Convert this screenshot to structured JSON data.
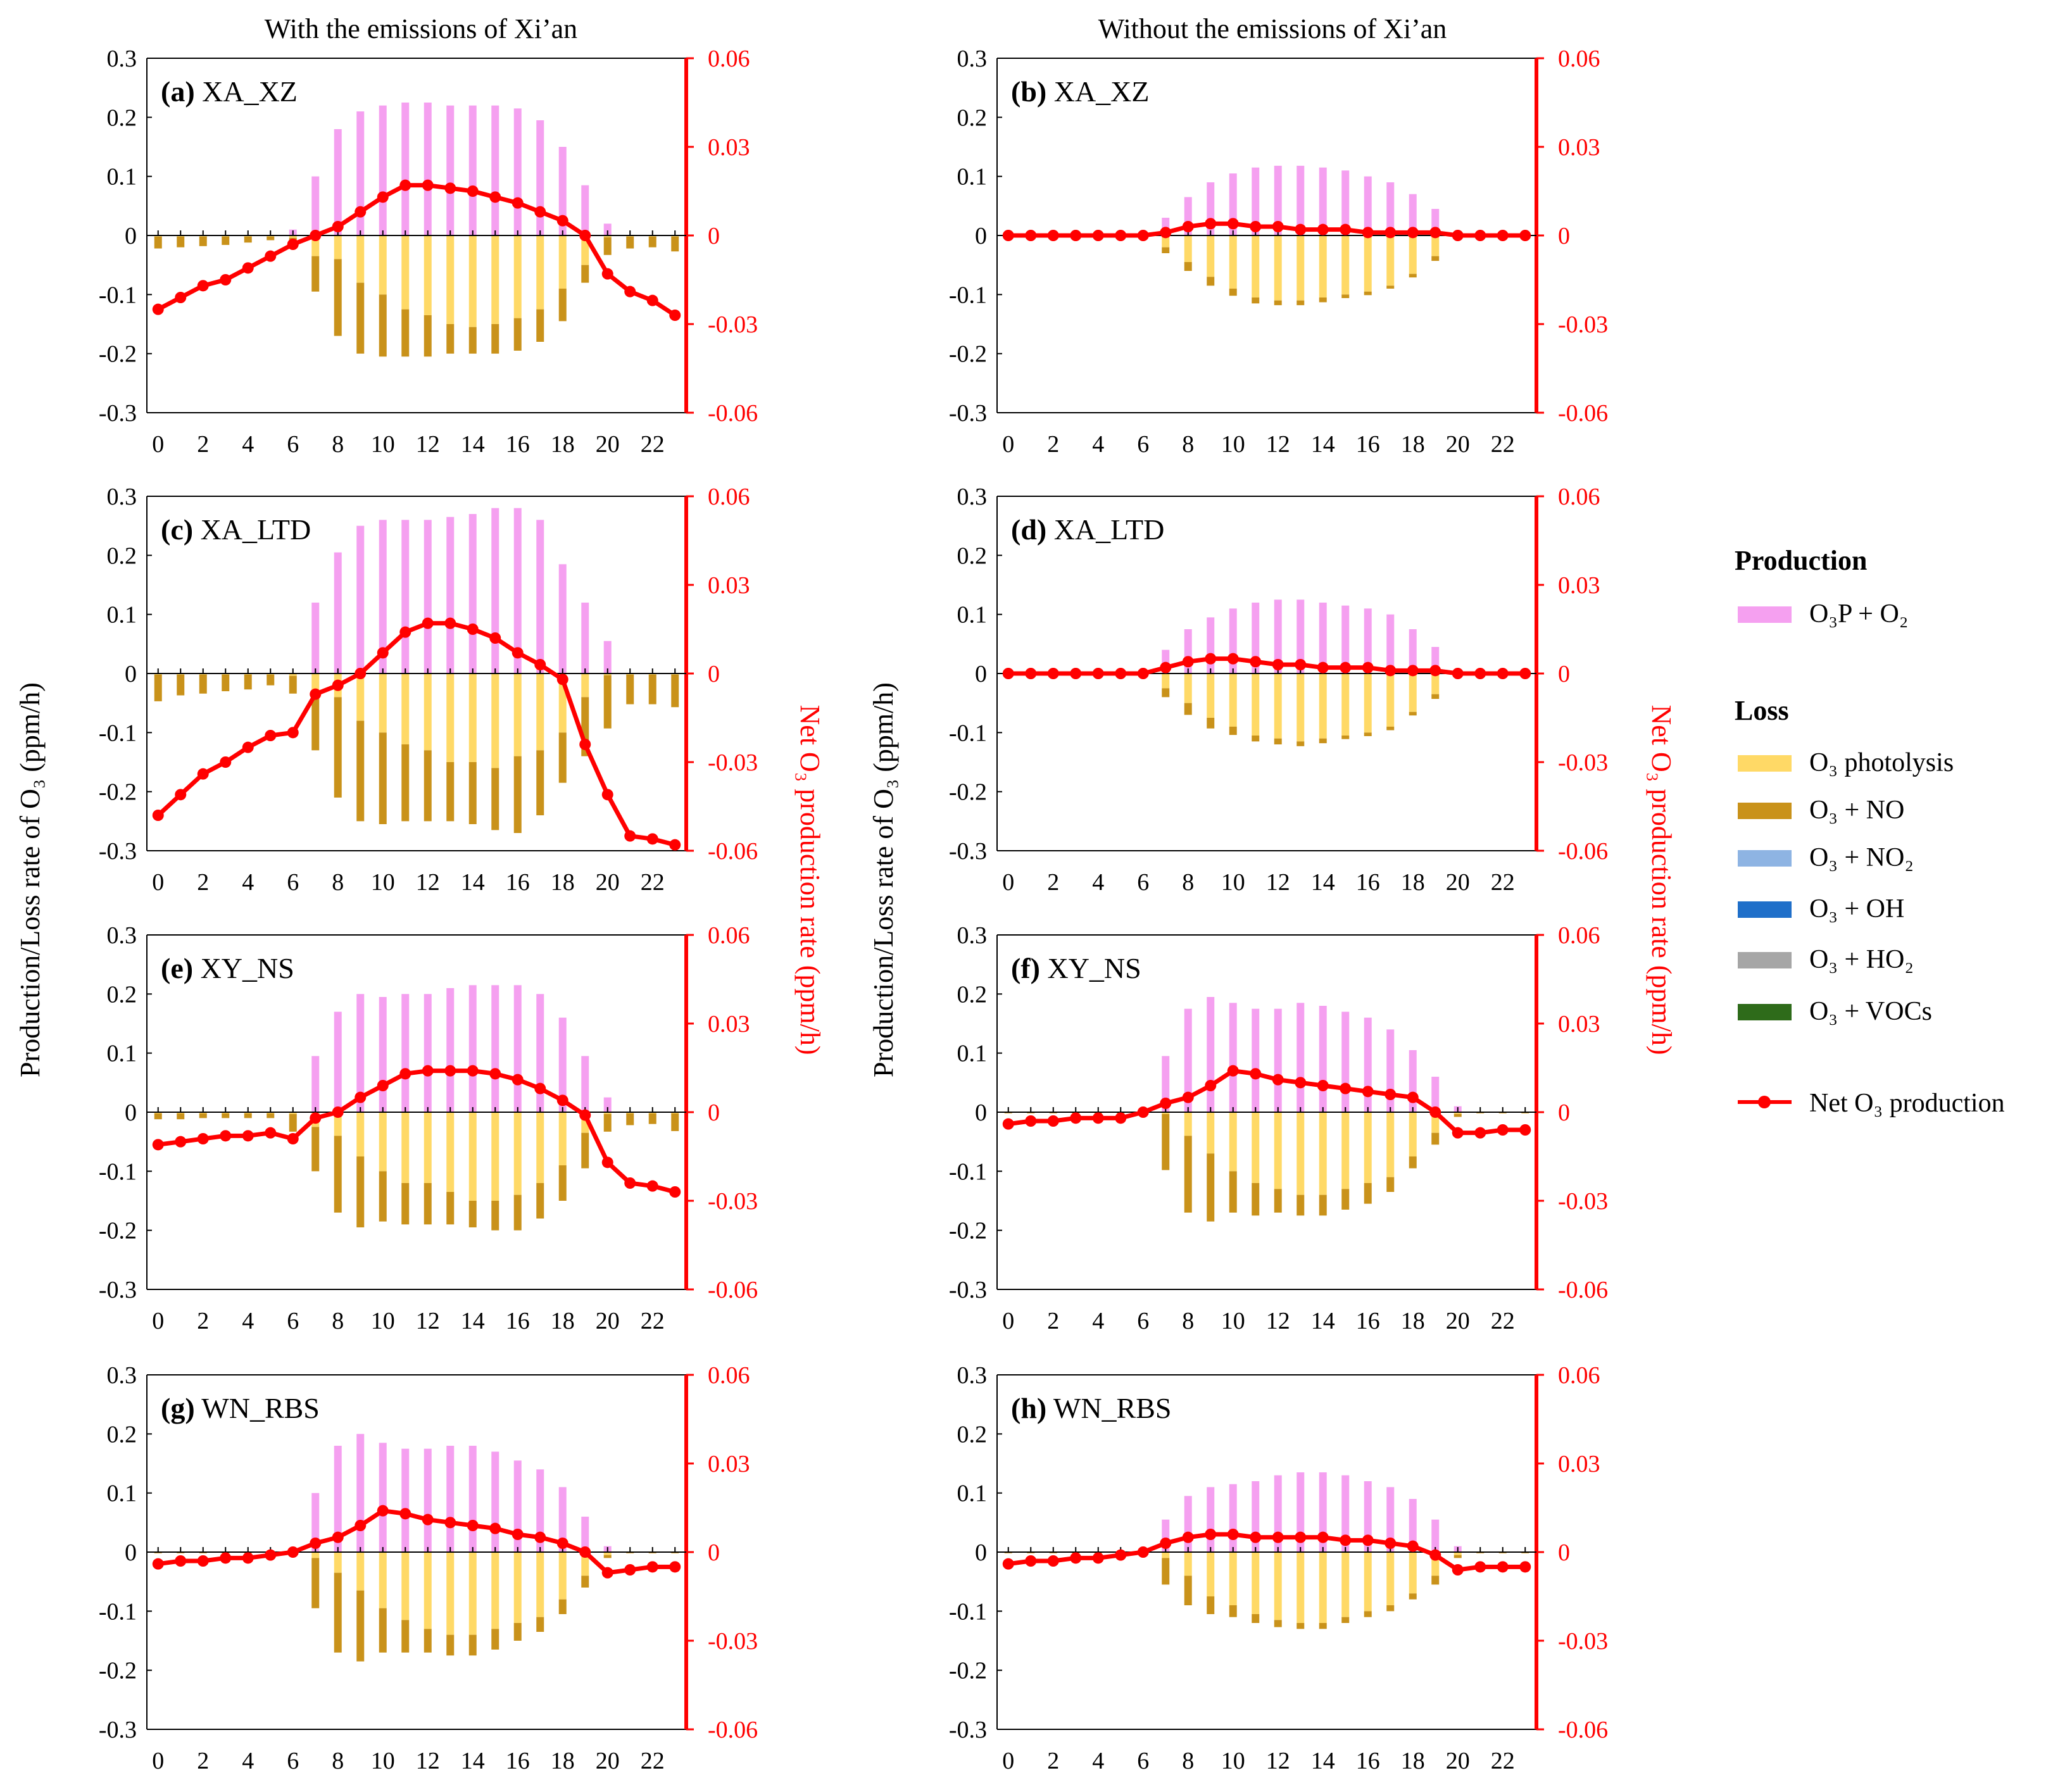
{
  "column_titles": [
    "With the emissions of Xi’an",
    "Without the emissions of Xi’an"
  ],
  "y_axis_title_left": "Production/Loss rate of O₃ (ppm/h)",
  "y_axis_title_right": "Net O₃ production rate (ppm/h)",
  "colors": {
    "o3p_o2": "#f5a0f0",
    "o3_photolysis": "#ffd966",
    "o3_no": "#c9921a",
    "o3_no2": "#8eb4e3",
    "o3_oh": "#1f6fc9",
    "o3_ho2": "#a6a6a6",
    "o3_vocs": "#2e6b1a",
    "net": "#ff0000",
    "axis": "#000000"
  },
  "legend": {
    "production_heading": "Production",
    "loss_heading": "Loss",
    "items": {
      "o3p_o2": "O₃P + O₂",
      "o3_photolysis": "O₃ photolysis",
      "o3_no": "O₃ + NO",
      "o3_no2": "O₃ + NO₂",
      "o3_oh": "O₃ + OH",
      "o3_ho2": "O₃ + HO₂",
      "o3_vocs": "O₃ + VOCs",
      "net": "Net O₃ production"
    }
  },
  "chart_data": [
    {
      "type": "bar",
      "label": "(a)",
      "site": "XA_XZ",
      "x": [
        0,
        1,
        2,
        3,
        4,
        5,
        6,
        7,
        8,
        9,
        10,
        11,
        12,
        13,
        14,
        15,
        16,
        17,
        18,
        19,
        20,
        21,
        22,
        23
      ],
      "x_ticks": [
        0,
        2,
        4,
        6,
        8,
        10,
        12,
        14,
        16,
        18,
        20,
        22
      ],
      "ylim": [
        -0.3,
        0.3
      ],
      "y_ticks": [
        -0.3,
        -0.2,
        -0.1,
        0,
        0.1,
        0.2,
        0.3
      ],
      "y2lim": [
        -0.06,
        0.06
      ],
      "y2_ticks": [
        -0.06,
        -0.03,
        0,
        0.03,
        0.06
      ],
      "production": [
        0,
        0,
        0,
        0,
        0,
        0,
        0.01,
        0.1,
        0.18,
        0.21,
        0.22,
        0.225,
        0.225,
        0.22,
        0.22,
        0.22,
        0.215,
        0.195,
        0.15,
        0.085,
        0.02,
        0,
        0,
        0
      ],
      "photolysis": [
        0.002,
        0.002,
        0.002,
        0.002,
        0.002,
        0.002,
        0.004,
        0.035,
        0.04,
        0.08,
        0.1,
        0.125,
        0.135,
        0.15,
        0.155,
        0.15,
        0.14,
        0.125,
        0.09,
        0.05,
        0.003,
        0.002,
        0.002,
        0.002
      ],
      "no_loss": [
        0.02,
        0.018,
        0.016,
        0.014,
        0.01,
        0.006,
        0.008,
        0.06,
        0.13,
        0.12,
        0.105,
        0.08,
        0.07,
        0.05,
        0.045,
        0.05,
        0.055,
        0.055,
        0.055,
        0.03,
        0.03,
        0.02,
        0.018,
        0.025
      ],
      "net": [
        -0.025,
        -0.021,
        -0.017,
        -0.015,
        -0.011,
        -0.007,
        -0.003,
        0.0,
        0.003,
        0.008,
        0.013,
        0.017,
        0.017,
        0.016,
        0.015,
        0.013,
        0.011,
        0.008,
        0.005,
        0.0,
        -0.013,
        -0.019,
        -0.022,
        -0.027
      ]
    },
    {
      "type": "bar",
      "label": "(b)",
      "site": "XA_XZ",
      "x": [
        0,
        1,
        2,
        3,
        4,
        5,
        6,
        7,
        8,
        9,
        10,
        11,
        12,
        13,
        14,
        15,
        16,
        17,
        18,
        19,
        20,
        21,
        22,
        23
      ],
      "x_ticks": [
        0,
        2,
        4,
        6,
        8,
        10,
        12,
        14,
        16,
        18,
        20,
        22
      ],
      "ylim": [
        -0.3,
        0.3
      ],
      "y_ticks": [
        -0.3,
        -0.2,
        -0.1,
        0,
        0.1,
        0.2,
        0.3
      ],
      "y2lim": [
        -0.06,
        0.06
      ],
      "y2_ticks": [
        -0.06,
        -0.03,
        0,
        0.03,
        0.06
      ],
      "production": [
        0,
        0,
        0,
        0,
        0,
        0,
        0,
        0.03,
        0.065,
        0.09,
        0.105,
        0.115,
        0.118,
        0.118,
        0.115,
        0.11,
        0.1,
        0.09,
        0.07,
        0.045,
        0,
        0,
        0,
        0
      ],
      "photolysis": [
        0,
        0,
        0,
        0,
        0,
        0,
        0,
        0.02,
        0.045,
        0.07,
        0.09,
        0.105,
        0.11,
        0.11,
        0.105,
        0.1,
        0.095,
        0.085,
        0.065,
        0.035,
        0,
        0,
        0,
        0
      ],
      "no_loss": [
        0,
        0,
        0,
        0,
        0,
        0,
        0,
        0.01,
        0.015,
        0.015,
        0.012,
        0.01,
        0.008,
        0.008,
        0.008,
        0.006,
        0.006,
        0.005,
        0.006,
        0.008,
        0,
        0,
        0,
        0
      ],
      "net": [
        0,
        0,
        0,
        0,
        0,
        0,
        0,
        0.001,
        0.003,
        0.004,
        0.004,
        0.003,
        0.003,
        0.002,
        0.002,
        0.002,
        0.001,
        0.001,
        0.001,
        0.001,
        0,
        0,
        0,
        0
      ]
    },
    {
      "type": "bar",
      "label": "(c)",
      "site": "XA_LTD",
      "x": [
        0,
        1,
        2,
        3,
        4,
        5,
        6,
        7,
        8,
        9,
        10,
        11,
        12,
        13,
        14,
        15,
        16,
        17,
        18,
        19,
        20,
        21,
        22,
        23
      ],
      "x_ticks": [
        0,
        2,
        4,
        6,
        8,
        10,
        12,
        14,
        16,
        18,
        20,
        22
      ],
      "ylim": [
        -0.3,
        0.3
      ],
      "y_ticks": [
        -0.3,
        -0.2,
        -0.1,
        0,
        0.1,
        0.2,
        0.3
      ],
      "y2lim": [
        -0.06,
        0.06
      ],
      "y2_ticks": [
        -0.06,
        -0.03,
        0,
        0.03,
        0.06
      ],
      "production": [
        0,
        0,
        0,
        0,
        0,
        0,
        0,
        0.12,
        0.205,
        0.25,
        0.26,
        0.26,
        0.26,
        0.265,
        0.27,
        0.28,
        0.28,
        0.26,
        0.185,
        0.12,
        0.055,
        0,
        0,
        0
      ],
      "photolysis": [
        0.002,
        0.002,
        0.002,
        0.002,
        0.002,
        0.002,
        0.004,
        0.03,
        0.04,
        0.08,
        0.1,
        0.12,
        0.13,
        0.15,
        0.15,
        0.16,
        0.14,
        0.13,
        0.1,
        0.04,
        0.003,
        0.002,
        0.002,
        0.002
      ],
      "no_loss": [
        0.045,
        0.035,
        0.032,
        0.028,
        0.025,
        0.018,
        0.03,
        0.1,
        0.17,
        0.17,
        0.155,
        0.13,
        0.12,
        0.1,
        0.105,
        0.105,
        0.13,
        0.11,
        0.085,
        0.1,
        0.09,
        0.05,
        0.05,
        0.055
      ],
      "net": [
        -0.048,
        -0.041,
        -0.034,
        -0.03,
        -0.025,
        -0.021,
        -0.02,
        -0.007,
        -0.004,
        0.0,
        0.007,
        0.014,
        0.017,
        0.017,
        0.015,
        0.012,
        0.007,
        0.003,
        -0.002,
        -0.024,
        -0.041,
        -0.055,
        -0.056,
        -0.058
      ]
    },
    {
      "type": "bar",
      "label": "(d)",
      "site": "XA_LTD",
      "x": [
        0,
        1,
        2,
        3,
        4,
        5,
        6,
        7,
        8,
        9,
        10,
        11,
        12,
        13,
        14,
        15,
        16,
        17,
        18,
        19,
        20,
        21,
        22,
        23
      ],
      "x_ticks": [
        0,
        2,
        4,
        6,
        8,
        10,
        12,
        14,
        16,
        18,
        20,
        22
      ],
      "ylim": [
        -0.3,
        0.3
      ],
      "y_ticks": [
        -0.3,
        -0.2,
        -0.1,
        0,
        0.1,
        0.2,
        0.3
      ],
      "y2lim": [
        -0.06,
        0.06
      ],
      "y2_ticks": [
        -0.06,
        -0.03,
        0,
        0.03,
        0.06
      ],
      "production": [
        0,
        0,
        0,
        0,
        0,
        0,
        0,
        0.04,
        0.075,
        0.095,
        0.11,
        0.12,
        0.125,
        0.125,
        0.12,
        0.115,
        0.11,
        0.1,
        0.075,
        0.045,
        0,
        0,
        0,
        0
      ],
      "photolysis": [
        0,
        0,
        0,
        0,
        0,
        0,
        0,
        0.025,
        0.05,
        0.075,
        0.09,
        0.105,
        0.11,
        0.115,
        0.11,
        0.105,
        0.1,
        0.09,
        0.065,
        0.035,
        0,
        0,
        0,
        0
      ],
      "no_loss": [
        0,
        0,
        0,
        0,
        0,
        0,
        0,
        0.015,
        0.02,
        0.018,
        0.014,
        0.01,
        0.01,
        0.008,
        0.008,
        0.006,
        0.006,
        0.006,
        0.006,
        0.008,
        0,
        0,
        0,
        0
      ],
      "net": [
        0,
        0,
        0,
        0,
        0,
        0,
        0,
        0.002,
        0.004,
        0.005,
        0.005,
        0.004,
        0.003,
        0.003,
        0.002,
        0.002,
        0.002,
        0.001,
        0.001,
        0.001,
        0,
        0,
        0,
        0
      ]
    },
    {
      "type": "bar",
      "label": "(e)",
      "site": "XY_NS",
      "x": [
        0,
        1,
        2,
        3,
        4,
        5,
        6,
        7,
        8,
        9,
        10,
        11,
        12,
        13,
        14,
        15,
        16,
        17,
        18,
        19,
        20,
        21,
        22,
        23
      ],
      "x_ticks": [
        0,
        2,
        4,
        6,
        8,
        10,
        12,
        14,
        16,
        18,
        20,
        22
      ],
      "ylim": [
        -0.3,
        0.3
      ],
      "y_ticks": [
        -0.3,
        -0.2,
        -0.1,
        0,
        0.1,
        0.2,
        0.3
      ],
      "y2lim": [
        -0.06,
        0.06
      ],
      "y2_ticks": [
        -0.06,
        -0.03,
        0,
        0.03,
        0.06
      ],
      "production": [
        0,
        0,
        0,
        0,
        0,
        0,
        0,
        0.095,
        0.17,
        0.2,
        0.195,
        0.2,
        0.2,
        0.21,
        0.215,
        0.215,
        0.215,
        0.2,
        0.16,
        0.095,
        0.025,
        0,
        0,
        0
      ],
      "photolysis": [
        0.002,
        0.002,
        0.002,
        0.002,
        0.002,
        0.002,
        0.003,
        0.025,
        0.04,
        0.075,
        0.1,
        0.12,
        0.12,
        0.135,
        0.15,
        0.15,
        0.14,
        0.12,
        0.09,
        0.035,
        0.003,
        0.002,
        0.002,
        0.002
      ],
      "no_loss": [
        0.01,
        0.01,
        0.008,
        0.008,
        0.008,
        0.008,
        0.03,
        0.075,
        0.13,
        0.12,
        0.085,
        0.07,
        0.07,
        0.055,
        0.045,
        0.05,
        0.06,
        0.06,
        0.06,
        0.06,
        0.03,
        0.02,
        0.018,
        0.03
      ],
      "net": [
        -0.011,
        -0.01,
        -0.009,
        -0.008,
        -0.008,
        -0.007,
        -0.009,
        -0.002,
        0.0,
        0.005,
        0.009,
        0.013,
        0.014,
        0.014,
        0.014,
        0.013,
        0.011,
        0.008,
        0.004,
        -0.001,
        -0.017,
        -0.024,
        -0.025,
        -0.027
      ]
    },
    {
      "type": "bar",
      "label": "(f)",
      "site": "XY_NS",
      "x": [
        0,
        1,
        2,
        3,
        4,
        5,
        6,
        7,
        8,
        9,
        10,
        11,
        12,
        13,
        14,
        15,
        16,
        17,
        18,
        19,
        20,
        21,
        22,
        23
      ],
      "x_ticks": [
        0,
        2,
        4,
        6,
        8,
        10,
        12,
        14,
        16,
        18,
        20,
        22
      ],
      "ylim": [
        -0.3,
        0.3
      ],
      "y_ticks": [
        -0.3,
        -0.2,
        -0.1,
        0,
        0.1,
        0.2,
        0.3
      ],
      "y2lim": [
        -0.06,
        0.06
      ],
      "y2_ticks": [
        -0.06,
        -0.03,
        0,
        0.03,
        0.06
      ],
      "production": [
        0,
        0,
        0,
        0,
        0,
        0,
        0,
        0.095,
        0.175,
        0.195,
        0.185,
        0.175,
        0.175,
        0.185,
        0.18,
        0.17,
        0.16,
        0.14,
        0.105,
        0.06,
        0.01,
        0,
        0,
        0
      ],
      "photolysis": [
        0,
        0,
        0,
        0,
        0,
        0,
        0,
        0.003,
        0.04,
        0.07,
        0.1,
        0.12,
        0.13,
        0.14,
        0.14,
        0.13,
        0.12,
        0.11,
        0.075,
        0.035,
        0.003,
        0,
        0,
        0
      ],
      "no_loss": [
        0.002,
        0.002,
        0.002,
        0.002,
        0.002,
        0.002,
        0.005,
        0.095,
        0.13,
        0.115,
        0.07,
        0.055,
        0.04,
        0.035,
        0.035,
        0.035,
        0.035,
        0.025,
        0.02,
        0.02,
        0.005,
        0.002,
        0.002,
        0.002
      ],
      "net": [
        -0.004,
        -0.003,
        -0.003,
        -0.002,
        -0.002,
        -0.002,
        0.0,
        0.003,
        0.005,
        0.009,
        0.014,
        0.013,
        0.011,
        0.01,
        0.009,
        0.008,
        0.007,
        0.006,
        0.005,
        0.0,
        -0.007,
        -0.007,
        -0.006,
        -0.006
      ]
    },
    {
      "type": "bar",
      "label": "(g)",
      "site": "WN_RBS",
      "x": [
        0,
        1,
        2,
        3,
        4,
        5,
        6,
        7,
        8,
        9,
        10,
        11,
        12,
        13,
        14,
        15,
        16,
        17,
        18,
        19,
        20,
        21,
        22,
        23
      ],
      "x_ticks": [
        0,
        2,
        4,
        6,
        8,
        10,
        12,
        14,
        16,
        18,
        20,
        22
      ],
      "ylim": [
        -0.3,
        0.3
      ],
      "y_ticks": [
        -0.3,
        -0.2,
        -0.1,
        0,
        0.1,
        0.2,
        0.3
      ],
      "y2lim": [
        -0.06,
        0.06
      ],
      "y2_ticks": [
        -0.06,
        -0.03,
        0,
        0.03,
        0.06
      ],
      "production": [
        0,
        0,
        0,
        0,
        0,
        0,
        0,
        0.1,
        0.18,
        0.2,
        0.185,
        0.175,
        0.175,
        0.18,
        0.18,
        0.17,
        0.155,
        0.14,
        0.11,
        0.06,
        0.01,
        0,
        0,
        0
      ],
      "photolysis": [
        0,
        0,
        0,
        0,
        0,
        0,
        0,
        0.01,
        0.035,
        0.065,
        0.095,
        0.115,
        0.13,
        0.14,
        0.14,
        0.13,
        0.12,
        0.11,
        0.08,
        0.04,
        0.005,
        0,
        0,
        0
      ],
      "no_loss": [
        0.002,
        0.002,
        0.002,
        0.002,
        0.002,
        0.002,
        0.005,
        0.085,
        0.135,
        0.12,
        0.075,
        0.055,
        0.04,
        0.035,
        0.035,
        0.035,
        0.03,
        0.025,
        0.025,
        0.02,
        0.005,
        0.002,
        0.002,
        0.002
      ],
      "net": [
        -0.004,
        -0.003,
        -0.003,
        -0.002,
        -0.002,
        -0.001,
        0.0,
        0.003,
        0.005,
        0.009,
        0.014,
        0.013,
        0.011,
        0.01,
        0.009,
        0.008,
        0.006,
        0.005,
        0.003,
        0.0,
        -0.007,
        -0.006,
        -0.005,
        -0.005
      ]
    },
    {
      "type": "bar",
      "label": "(h)",
      "site": "WN_RBS",
      "x": [
        0,
        1,
        2,
        3,
        4,
        5,
        6,
        7,
        8,
        9,
        10,
        11,
        12,
        13,
        14,
        15,
        16,
        17,
        18,
        19,
        20,
        21,
        22,
        23
      ],
      "x_ticks": [
        0,
        2,
        4,
        6,
        8,
        10,
        12,
        14,
        16,
        18,
        20,
        22
      ],
      "ylim": [
        -0.3,
        0.3
      ],
      "y_ticks": [
        -0.3,
        -0.2,
        -0.1,
        0,
        0.1,
        0.2,
        0.3
      ],
      "y2lim": [
        -0.06,
        0.06
      ],
      "y2_ticks": [
        -0.06,
        -0.03,
        0,
        0.03,
        0.06
      ],
      "production": [
        0,
        0,
        0,
        0,
        0,
        0,
        0,
        0.055,
        0.095,
        0.11,
        0.115,
        0.12,
        0.13,
        0.135,
        0.135,
        0.13,
        0.12,
        0.11,
        0.09,
        0.055,
        0.01,
        0,
        0,
        0
      ],
      "photolysis": [
        0,
        0,
        0,
        0,
        0,
        0,
        0,
        0.01,
        0.04,
        0.075,
        0.09,
        0.105,
        0.115,
        0.12,
        0.12,
        0.11,
        0.1,
        0.09,
        0.07,
        0.04,
        0.005,
        0,
        0,
        0
      ],
      "no_loss": [
        0.002,
        0.002,
        0.002,
        0.002,
        0.002,
        0.002,
        0.005,
        0.045,
        0.05,
        0.03,
        0.02,
        0.015,
        0.012,
        0.01,
        0.01,
        0.01,
        0.01,
        0.01,
        0.01,
        0.015,
        0.005,
        0.002,
        0.002,
        0.002
      ],
      "net": [
        -0.004,
        -0.003,
        -0.003,
        -0.002,
        -0.002,
        -0.001,
        0.0,
        0.003,
        0.005,
        0.006,
        0.006,
        0.005,
        0.005,
        0.005,
        0.005,
        0.004,
        0.004,
        0.003,
        0.002,
        -0.001,
        -0.006,
        -0.005,
        -0.005,
        -0.005
      ]
    }
  ]
}
